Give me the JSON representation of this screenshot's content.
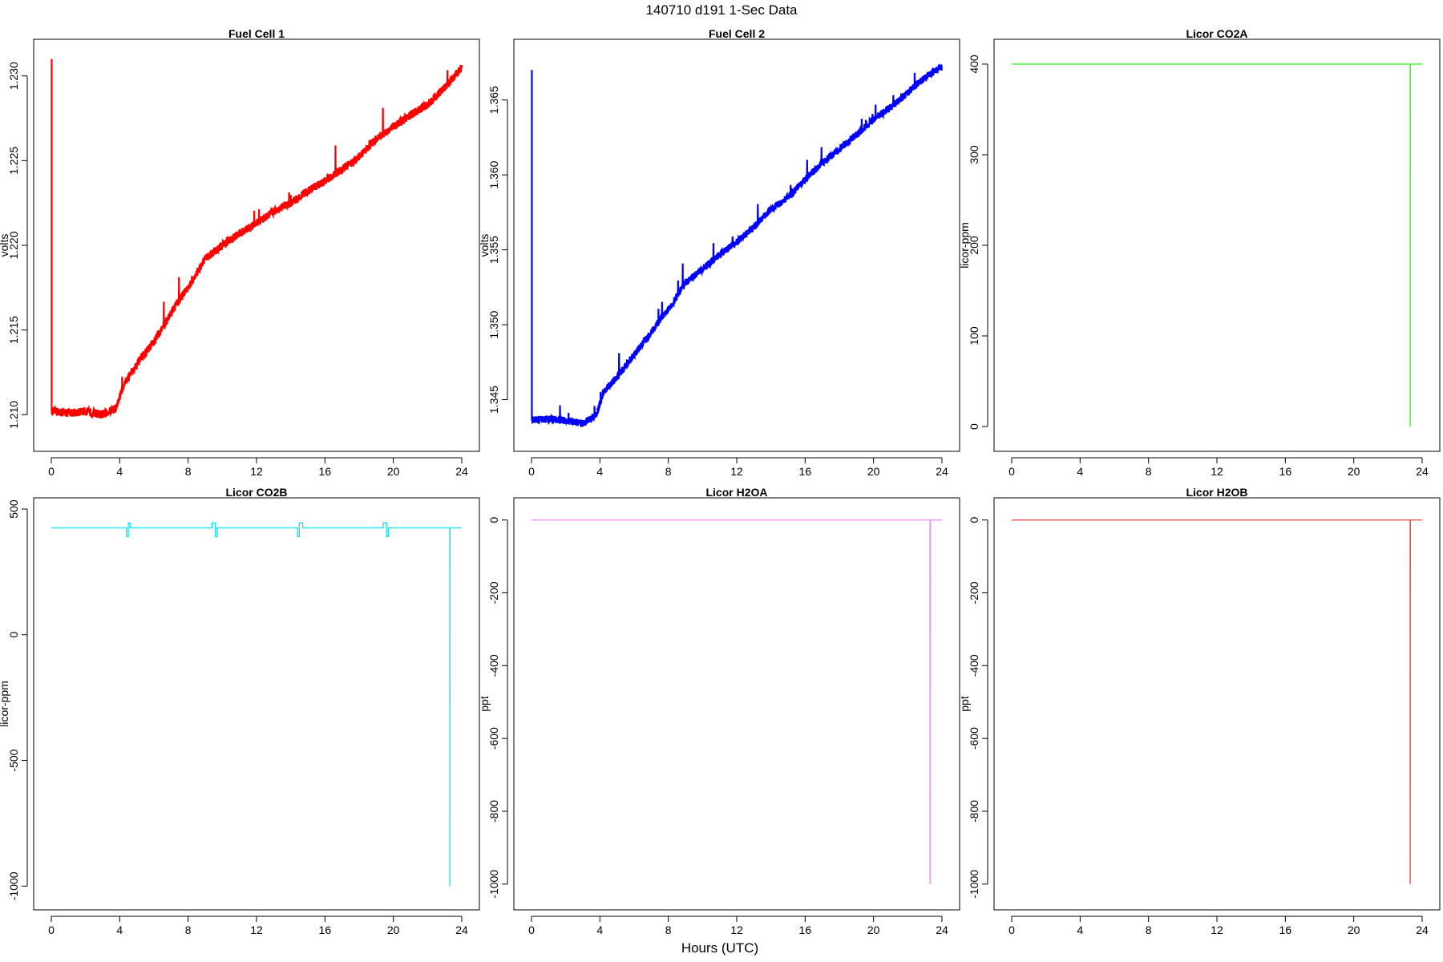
{
  "figure": {
    "title": "140710   d191   1-Sec Data",
    "xlabel": "Hours (UTC)"
  },
  "chart_data": [
    {
      "type": "line",
      "title": "Fuel Cell 1",
      "ylabel": "volts",
      "color": "#ff0000",
      "xlim": [
        0,
        24
      ],
      "ylim": [
        1.2085,
        1.2315
      ],
      "xticks": [
        0,
        4,
        8,
        12,
        16,
        20,
        24
      ],
      "yticks": [
        1.21,
        1.215,
        1.22,
        1.225,
        1.23
      ],
      "ytick_labels": [
        "1.210",
        "1.215",
        "1.220",
        "1.225",
        "1.230"
      ],
      "noise": 0.00025,
      "spike": {
        "x": 0.02,
        "y": 1.231
      },
      "points": [
        [
          0.05,
          1.2102
        ],
        [
          1,
          1.2101
        ],
        [
          2,
          1.2102
        ],
        [
          3,
          1.21
        ],
        [
          3.8,
          1.2104
        ],
        [
          4.2,
          1.2117
        ],
        [
          5,
          1.213
        ],
        [
          6,
          1.2143
        ],
        [
          7,
          1.216
        ],
        [
          7.5,
          1.2168
        ],
        [
          8,
          1.2175
        ],
        [
          9,
          1.2192
        ],
        [
          10,
          1.22
        ],
        [
          11,
          1.2207
        ],
        [
          12,
          1.2213
        ],
        [
          13,
          1.222
        ],
        [
          14,
          1.2225
        ],
        [
          15,
          1.2232
        ],
        [
          16,
          1.2238
        ],
        [
          17,
          1.2245
        ],
        [
          18,
          1.2252
        ],
        [
          19,
          1.2263
        ],
        [
          20,
          1.227
        ],
        [
          21,
          1.2277
        ],
        [
          22,
          1.2283
        ],
        [
          23,
          1.2293
        ],
        [
          24,
          1.2305
        ]
      ]
    },
    {
      "type": "line",
      "title": "Fuel Cell 2",
      "ylabel": "volts",
      "color": "#0000ff",
      "xlim": [
        0,
        24
      ],
      "ylim": [
        1.3423,
        1.3683
      ],
      "xticks": [
        0,
        4,
        8,
        12,
        16,
        20,
        24
      ],
      "yticks": [
        1.345,
        1.35,
        1.355,
        1.36,
        1.365
      ],
      "ytick_labels": [
        "1.345",
        "1.350",
        "1.355",
        "1.360",
        "1.365"
      ],
      "noise": 0.00025,
      "spike": {
        "x": 0.02,
        "y": 1.367
      },
      "points": [
        [
          0.05,
          1.3437
        ],
        [
          1,
          1.3437
        ],
        [
          2,
          1.3436
        ],
        [
          3,
          1.3434
        ],
        [
          3.8,
          1.344
        ],
        [
          4.2,
          1.3455
        ],
        [
          5,
          1.3465
        ],
        [
          6,
          1.348
        ],
        [
          7,
          1.3495
        ],
        [
          7.5,
          1.3503
        ],
        [
          8,
          1.351
        ],
        [
          9,
          1.3528
        ],
        [
          10,
          1.3537
        ],
        [
          11,
          1.3547
        ],
        [
          12,
          1.3555
        ],
        [
          13,
          1.3565
        ],
        [
          14,
          1.3577
        ],
        [
          15,
          1.3585
        ],
        [
          16,
          1.3597
        ],
        [
          17,
          1.3608
        ],
        [
          18,
          1.3617
        ],
        [
          19,
          1.3627
        ],
        [
          20,
          1.3637
        ],
        [
          21,
          1.3645
        ],
        [
          22,
          1.3655
        ],
        [
          23,
          1.3665
        ],
        [
          24,
          1.3672
        ]
      ]
    },
    {
      "type": "line",
      "title": "Licor CO2A",
      "ylabel": "licor-ppm",
      "color": "#33ee33",
      "xlim": [
        0,
        24
      ],
      "ylim": [
        -15,
        415
      ],
      "xticks": [
        0,
        4,
        8,
        12,
        16,
        20,
        24
      ],
      "yticks": [
        0,
        100,
        200,
        300,
        400
      ],
      "ytick_labels": [
        "0",
        "100",
        "200",
        "300",
        "400"
      ],
      "points": [
        [
          0,
          400
        ],
        [
          23.3,
          400
        ],
        [
          23.3,
          0
        ],
        [
          23.31,
          400
        ],
        [
          24,
          400
        ]
      ]
    },
    {
      "type": "line",
      "title": "Licor CO2B",
      "ylabel": "licor-ppm",
      "color": "#00e5ee",
      "xlim": [
        0,
        24
      ],
      "ylim": [
        -1050,
        500
      ],
      "xticks": [
        0,
        4,
        8,
        12,
        16,
        20,
        24
      ],
      "yticks": [
        -1000,
        -500,
        0,
        500
      ],
      "ytick_labels": [
        "-1000",
        "-500",
        "0",
        "500"
      ],
      "points": [
        [
          0,
          425
        ],
        [
          4.4,
          425
        ],
        [
          4.4,
          390
        ],
        [
          4.5,
          390
        ],
        [
          4.5,
          445
        ],
        [
          4.6,
          445
        ],
        [
          4.6,
          425
        ],
        [
          9.4,
          425
        ],
        [
          9.4,
          445
        ],
        [
          9.6,
          445
        ],
        [
          9.6,
          390
        ],
        [
          9.7,
          390
        ],
        [
          9.7,
          425
        ],
        [
          14.4,
          425
        ],
        [
          14.4,
          390
        ],
        [
          14.5,
          390
        ],
        [
          14.5,
          445
        ],
        [
          14.7,
          445
        ],
        [
          14.7,
          425
        ],
        [
          19.4,
          425
        ],
        [
          19.4,
          445
        ],
        [
          19.6,
          445
        ],
        [
          19.6,
          390
        ],
        [
          19.7,
          390
        ],
        [
          19.7,
          425
        ],
        [
          23.3,
          425
        ],
        [
          23.3,
          -1000
        ],
        [
          23.31,
          425
        ],
        [
          24,
          425
        ]
      ]
    },
    {
      "type": "line",
      "title": "Licor H2OA",
      "ylabel": "ppt",
      "color": "#ee82ee",
      "xlim": [
        0,
        24
      ],
      "ylim": [
        -1040,
        30
      ],
      "xticks": [
        0,
        4,
        8,
        12,
        16,
        20,
        24
      ],
      "yticks": [
        -1000,
        -800,
        -600,
        -400,
        -200,
        0
      ],
      "ytick_labels": [
        "-1000",
        "-800",
        "-600",
        "-400",
        "-200",
        "0"
      ],
      "points": [
        [
          0,
          0
        ],
        [
          23.3,
          0
        ],
        [
          23.3,
          -1000
        ],
        [
          23.31,
          0
        ],
        [
          24,
          0
        ]
      ]
    },
    {
      "type": "line",
      "title": "Licor H2OB",
      "ylabel": "ppt",
      "color": "#ee3b3b",
      "xlim": [
        0,
        24
      ],
      "ylim": [
        -1040,
        30
      ],
      "xticks": [
        0,
        4,
        8,
        12,
        16,
        20,
        24
      ],
      "yticks": [
        -1000,
        -800,
        -600,
        -400,
        -200,
        0
      ],
      "ytick_labels": [
        "-1000",
        "-800",
        "-600",
        "-400",
        "-200",
        "0"
      ],
      "points": [
        [
          0,
          0
        ],
        [
          23.3,
          0
        ],
        [
          23.3,
          -1000
        ],
        [
          23.31,
          0
        ],
        [
          24,
          0
        ]
      ]
    }
  ]
}
